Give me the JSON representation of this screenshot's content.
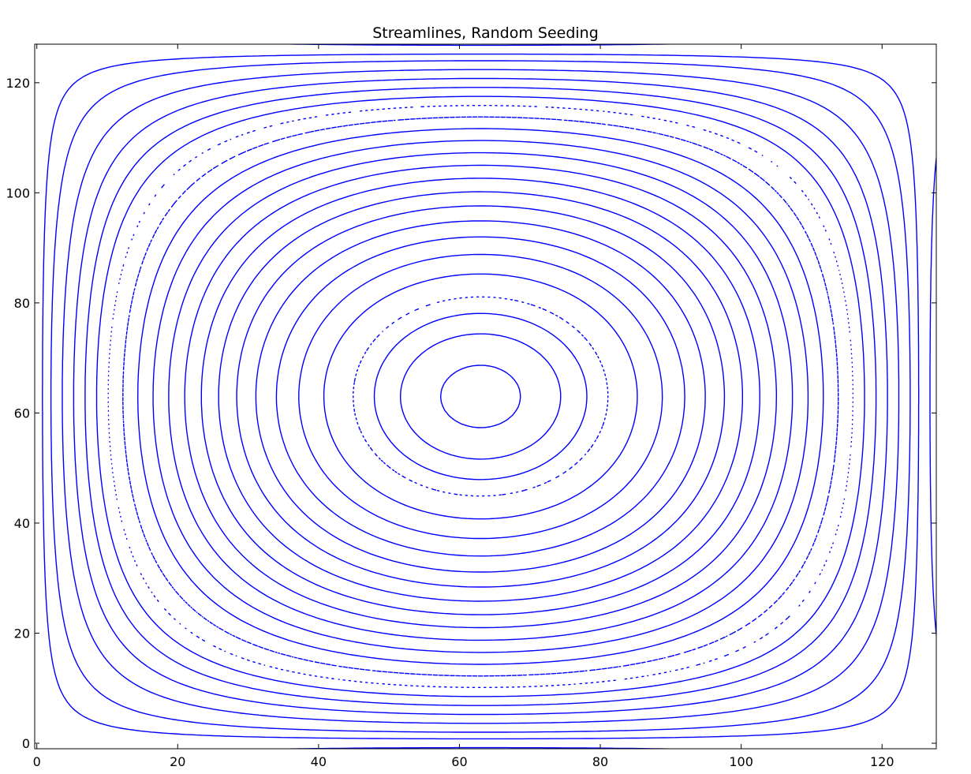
{
  "chart_data": {
    "type": "streamplot",
    "title": "Streamlines, Random Seeding",
    "xlabel": "",
    "ylabel": "",
    "xlim": [
      -0.3,
      127.7
    ],
    "ylim": [
      -1.0,
      127.0
    ],
    "x_ticks": [
      0,
      20,
      40,
      60,
      80,
      100,
      120
    ],
    "y_ticks": [
      0,
      20,
      40,
      60,
      80,
      100,
      120
    ],
    "x_tick_labels": [
      "0",
      "20",
      "40",
      "60",
      "80",
      "100",
      "120"
    ],
    "y_tick_labels": [
      "0",
      "20",
      "40",
      "60",
      "80",
      "100",
      "120"
    ],
    "grid": false,
    "legend": "none",
    "line_color": "#0000ff",
    "field": {
      "kind": "cellular vortex",
      "center": [
        63,
        63
      ],
      "period": 126
    },
    "streamline_levels": [
      0.02,
      0.05,
      0.09,
      0.13,
      0.17,
      0.21,
      0.25,
      0.3,
      0.35,
      0.4,
      0.45,
      0.5,
      0.55,
      0.6,
      0.65,
      0.7,
      0.75,
      0.8,
      0.85,
      0.9,
      0.93,
      0.96,
      0.99
    ]
  }
}
